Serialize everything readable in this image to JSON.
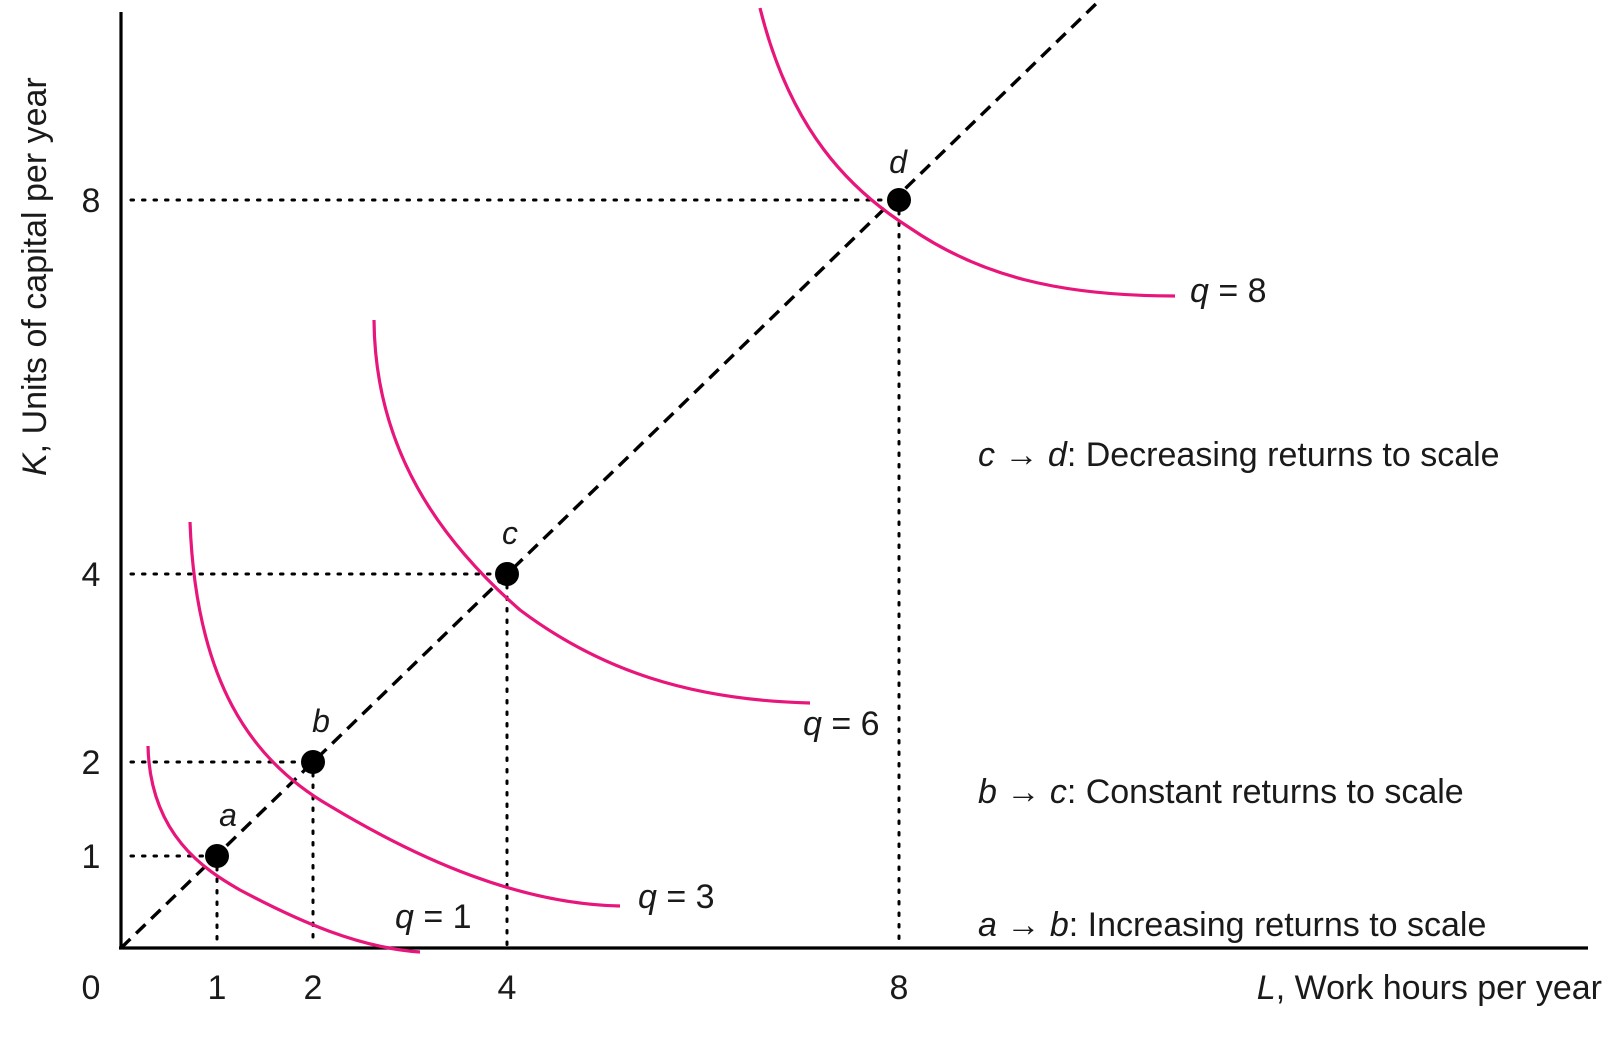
{
  "chart_data": {
    "type": "line",
    "xlabel_var": "L",
    "xlabel_text": ", Work hours per year",
    "ylabel_var": "K",
    "ylabel_text": ", Units of capital per year",
    "origin_label": "0",
    "x_ticks": [
      1,
      2,
      4,
      8
    ],
    "y_ticks": [
      1,
      2,
      4,
      8
    ],
    "points": [
      {
        "label": "a",
        "L": 1,
        "K": 1
      },
      {
        "label": "b",
        "L": 2,
        "K": 2
      },
      {
        "label": "c",
        "L": 4,
        "K": 4
      },
      {
        "label": "d",
        "L": 8,
        "K": 8
      }
    ],
    "series": [
      {
        "name": "q = 1",
        "var": "q",
        "value": "1",
        "point": "a"
      },
      {
        "name": "q = 3",
        "var": "q",
        "value": "3",
        "point": "b"
      },
      {
        "name": "q = 6",
        "var": "q",
        "value": "6",
        "point": "c"
      },
      {
        "name": "q = 8",
        "var": "q",
        "value": "8",
        "point": "d"
      }
    ],
    "annotations": [
      {
        "from": "c",
        "to": "d",
        "text": ": Decreasing returns to scale"
      },
      {
        "from": "b",
        "to": "c",
        "text": ": Constant returns to scale"
      },
      {
        "from": "a",
        "to": "b",
        "text": ": Increasing returns to scale"
      }
    ],
    "arrow_glyph": "→",
    "colors": {
      "isoquant": "#e8157a",
      "axes": "#000000"
    },
    "grid": false
  }
}
